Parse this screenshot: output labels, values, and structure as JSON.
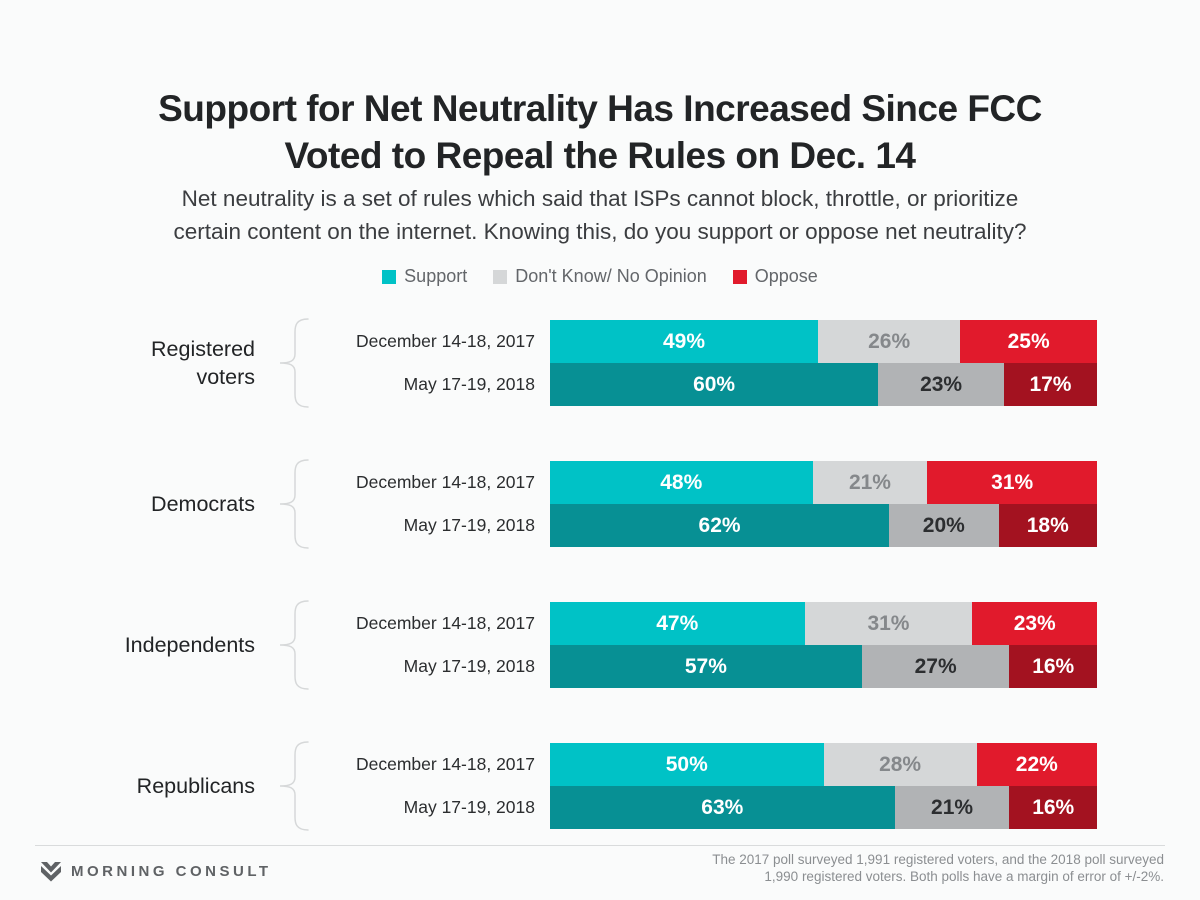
{
  "title": {
    "line1": "Support for Net Neutrality Has Increased Since FCC",
    "line2": "Voted to Repeal the Rules on Dec. 14"
  },
  "subtitle": {
    "line1": "Net neutrality is a set of rules which said that ISPs cannot block, throttle, or prioritize",
    "line2": "certain content on the internet. Knowing this, do you support or oppose net neutrality?"
  },
  "legend": [
    {
      "label": "Support",
      "color": "#00c2c6"
    },
    {
      "label": "Don't Know/ No Opinion",
      "color": "#d5d7d8"
    },
    {
      "label": "Oppose",
      "color": "#e11a2c"
    }
  ],
  "colors": {
    "series_keys": [
      "support",
      "dont-know",
      "oppose"
    ],
    "fills": [
      {
        "2017": "#00c2c6",
        "2018": "#079094"
      },
      {
        "2017": "#d5d7d8",
        "2018": "#b1b3b5"
      },
      {
        "2017": "#e11a2c",
        "2018": "#a31220"
      }
    ],
    "value_label_colors": [
      {
        "2017": "#ffffff",
        "2018": "#ffffff"
      },
      {
        "2017": "#85888b",
        "2018": "#2c2e30"
      },
      {
        "2017": "#ffffff",
        "2018": "#ffffff"
      }
    ]
  },
  "chart_data": {
    "type": "bar",
    "stacked": true,
    "orientation": "horizontal",
    "unit": "%",
    "xlim": [
      0,
      100
    ],
    "series_names": [
      "Support",
      "Don't Know/ No Opinion",
      "Oppose"
    ],
    "groups": [
      {
        "category": "Registered\nvoters",
        "rows": [
          {
            "period": "December 14-18, 2017",
            "year": "2017",
            "values": [
              49,
              26,
              25
            ]
          },
          {
            "period": "May 17-19, 2018",
            "year": "2018",
            "values": [
              60,
              23,
              17
            ]
          }
        ]
      },
      {
        "category": "Democrats",
        "rows": [
          {
            "period": "December 14-18, 2017",
            "year": "2017",
            "values": [
              48,
              21,
              31
            ]
          },
          {
            "period": "May 17-19, 2018",
            "year": "2018",
            "values": [
              62,
              20,
              18
            ]
          }
        ]
      },
      {
        "category": "Independents",
        "rows": [
          {
            "period": "December 14-18, 2017",
            "year": "2017",
            "values": [
              47,
              31,
              23
            ]
          },
          {
            "period": "May 17-19, 2018",
            "year": "2018",
            "values": [
              57,
              27,
              16
            ]
          }
        ]
      },
      {
        "category": "Republicans",
        "rows": [
          {
            "period": "December 14-18, 2017",
            "year": "2017",
            "values": [
              50,
              28,
              22
            ]
          },
          {
            "period": "May 17-19, 2018",
            "year": "2018",
            "values": [
              63,
              21,
              16
            ]
          }
        ]
      }
    ]
  },
  "footer": {
    "brand": "MORNING CONSULT",
    "note_line1": "The 2017 poll surveyed 1,991 registered voters, and the 2018 poll surveyed",
    "note_line2": "1,990 registered voters. Both polls have a margin of error of +/-2%."
  }
}
